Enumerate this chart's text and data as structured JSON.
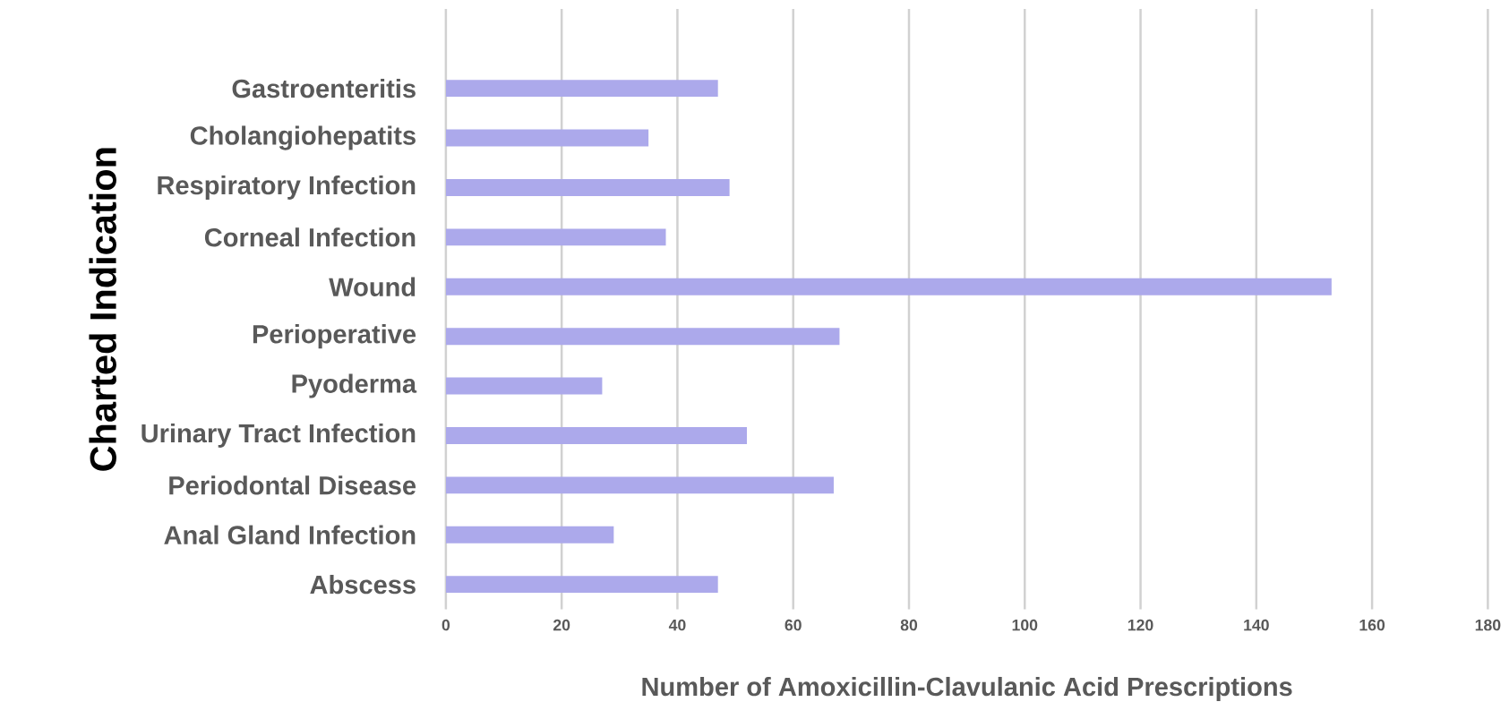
{
  "chart_data": {
    "type": "bar",
    "orientation": "horizontal",
    "categories": [
      "Gastroenteritis",
      "Cholangiohepatits",
      "Respiratory Infection",
      "Corneal Infection",
      "Wound",
      "Perioperative",
      "Pyoderma",
      "Urinary Tract Infection",
      "Periodontal Disease",
      "Anal Gland Infection",
      "Abscess"
    ],
    "values": [
      47,
      35,
      49,
      38,
      153,
      68,
      27,
      52,
      67,
      29,
      47
    ],
    "color": "#aca9eb",
    "xlim": [
      0,
      180
    ],
    "xticks": [
      0,
      20,
      40,
      60,
      80,
      100,
      120,
      140,
      160,
      180
    ],
    "grid": "x",
    "xlabel": "Number of Amoxicillin-Clavulanic Acid Prescriptions",
    "ylabel": "Charted Indication"
  }
}
